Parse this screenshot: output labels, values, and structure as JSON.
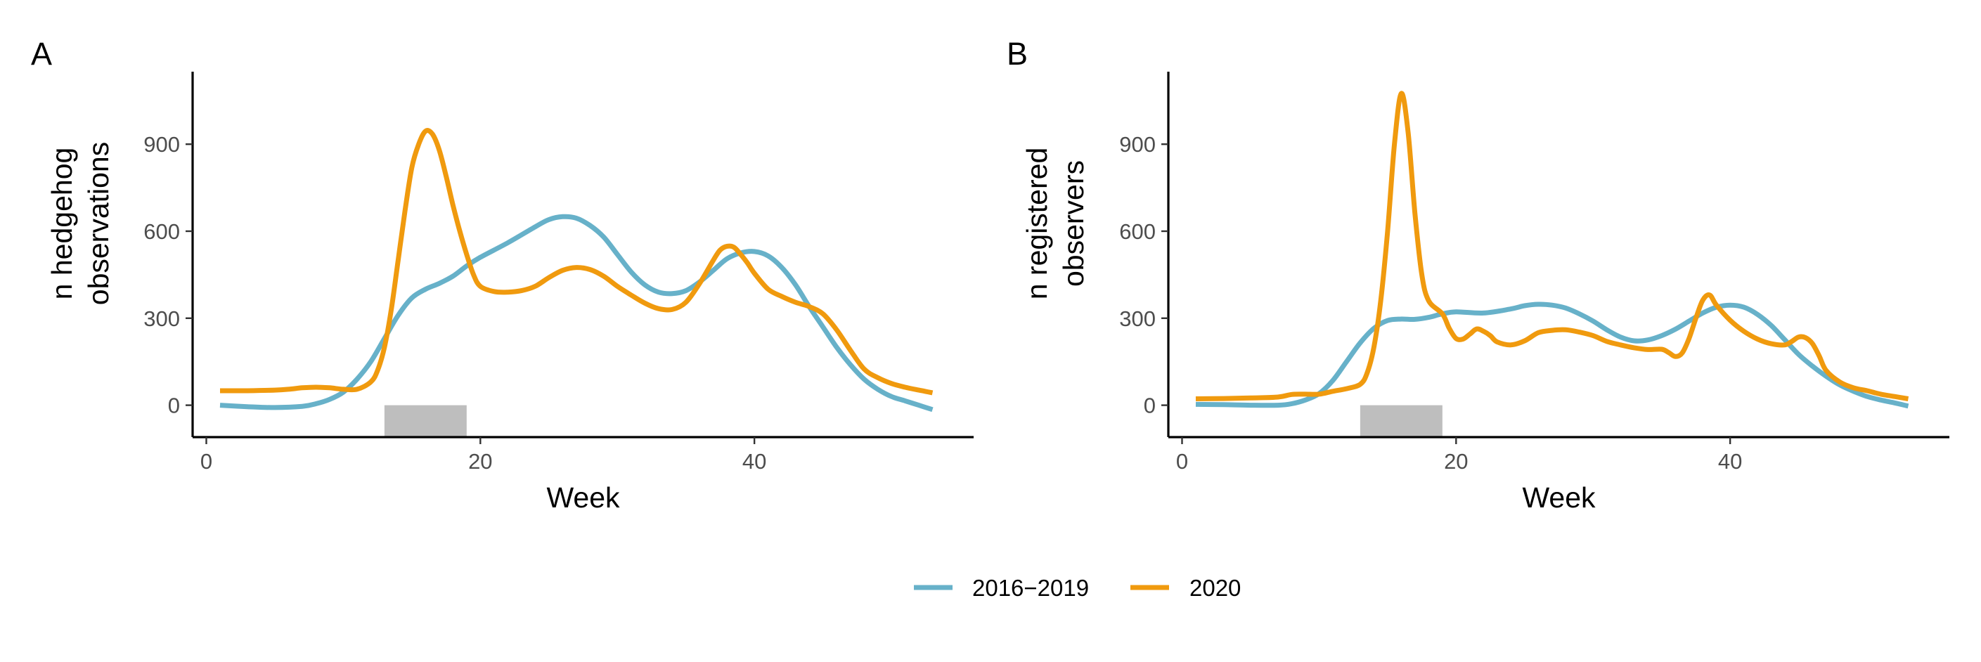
{
  "chart_data": [
    {
      "type": "line",
      "panel_label": "A",
      "xlabel": "Week",
      "ylabel_lines": [
        "n hedgehog",
        "observations"
      ],
      "xlim": [
        -1,
        56
      ],
      "ylim": [
        -110,
        1150
      ],
      "xticks": [
        0,
        20,
        40
      ],
      "yticks": [
        0,
        300,
        600,
        900
      ],
      "grid": false,
      "shaded_period": {
        "x": [
          13,
          19
        ],
        "y": [
          -110,
          0
        ],
        "color": "#bebebe"
      },
      "series": [
        {
          "name": "2016−2019",
          "color": "#67b1c9",
          "points": [
            [
              1,
              0
            ],
            [
              3,
              -5
            ],
            [
              5,
              -8
            ],
            [
              7,
              -4
            ],
            [
              8,
              5
            ],
            [
              9,
              20
            ],
            [
              10,
              45
            ],
            [
              11,
              90
            ],
            [
              12,
              150
            ],
            [
              13,
              230
            ],
            [
              14,
              310
            ],
            [
              15,
              370
            ],
            [
              16,
              400
            ],
            [
              17,
              420
            ],
            [
              18,
              445
            ],
            [
              19,
              480
            ],
            [
              20,
              510
            ],
            [
              22,
              560
            ],
            [
              24,
              615
            ],
            [
              25,
              640
            ],
            [
              26,
              650
            ],
            [
              27,
              645
            ],
            [
              28,
              620
            ],
            [
              29,
              580
            ],
            [
              30,
              520
            ],
            [
              31,
              460
            ],
            [
              32,
              415
            ],
            [
              33,
              390
            ],
            [
              34,
              385
            ],
            [
              35,
              395
            ],
            [
              36,
              425
            ],
            [
              37,
              465
            ],
            [
              38,
              505
            ],
            [
              39,
              525
            ],
            [
              40,
              530
            ],
            [
              41,
              515
            ],
            [
              42,
              475
            ],
            [
              43,
              415
            ],
            [
              44,
              340
            ],
            [
              45,
              270
            ],
            [
              46,
              200
            ],
            [
              47,
              140
            ],
            [
              48,
              90
            ],
            [
              49,
              55
            ],
            [
              50,
              30
            ],
            [
              51,
              15
            ],
            [
              52,
              0
            ],
            [
              53,
              -15
            ]
          ]
        },
        {
          "name": "2020",
          "color": "#f09a0e",
          "points": [
            [
              1,
              50
            ],
            [
              3,
              50
            ],
            [
              5,
              52
            ],
            [
              6,
              55
            ],
            [
              7,
              60
            ],
            [
              8,
              62
            ],
            [
              9,
              60
            ],
            [
              10,
              55
            ],
            [
              11,
              55
            ],
            [
              12,
              80
            ],
            [
              12.5,
              120
            ],
            [
              13,
              200
            ],
            [
              13.5,
              330
            ],
            [
              14,
              500
            ],
            [
              14.5,
              670
            ],
            [
              15,
              820
            ],
            [
              15.5,
              900
            ],
            [
              16,
              945
            ],
            [
              16.5,
              935
            ],
            [
              17,
              880
            ],
            [
              17.5,
              790
            ],
            [
              18,
              690
            ],
            [
              18.5,
              600
            ],
            [
              19,
              520
            ],
            [
              19.5,
              450
            ],
            [
              20,
              410
            ],
            [
              21,
              392
            ],
            [
              22,
              390
            ],
            [
              23,
              395
            ],
            [
              24,
              410
            ],
            [
              25,
              440
            ],
            [
              26,
              465
            ],
            [
              27,
              475
            ],
            [
              28,
              468
            ],
            [
              29,
              445
            ],
            [
              30,
              410
            ],
            [
              31,
              380
            ],
            [
              32,
              352
            ],
            [
              33,
              333
            ],
            [
              34,
              330
            ],
            [
              35,
              355
            ],
            [
              36,
              420
            ],
            [
              37,
              500
            ],
            [
              37.5,
              535
            ],
            [
              38,
              548
            ],
            [
              38.5,
              545
            ],
            [
              39,
              520
            ],
            [
              39.5,
              490
            ],
            [
              40,
              455
            ],
            [
              41,
              400
            ],
            [
              42,
              375
            ],
            [
              43,
              355
            ],
            [
              44,
              340
            ],
            [
              45,
              315
            ],
            [
              46,
              260
            ],
            [
              47,
              190
            ],
            [
              48,
              125
            ],
            [
              49,
              95
            ],
            [
              50,
              75
            ],
            [
              51,
              62
            ],
            [
              52,
              52
            ],
            [
              53,
              43
            ]
          ]
        }
      ]
    },
    {
      "type": "line",
      "panel_label": "B",
      "xlabel": "Week",
      "ylabel_lines": [
        "n registered",
        "observers"
      ],
      "xlim": [
        -1,
        56
      ],
      "ylim": [
        -110,
        1150
      ],
      "xticks": [
        0,
        20,
        40
      ],
      "yticks": [
        0,
        300,
        600,
        900
      ],
      "grid": false,
      "shaded_period": {
        "x": [
          13,
          19
        ],
        "y": [
          -110,
          0
        ],
        "color": "#bebebe"
      },
      "series": [
        {
          "name": "2016−2019",
          "color": "#67b1c9",
          "points": [
            [
              1,
              3
            ],
            [
              3,
              2
            ],
            [
              5,
              0
            ],
            [
              7,
              0
            ],
            [
              8,
              5
            ],
            [
              9,
              18
            ],
            [
              10,
              40
            ],
            [
              11,
              85
            ],
            [
              12,
              150
            ],
            [
              13,
              215
            ],
            [
              14,
              265
            ],
            [
              15,
              292
            ],
            [
              16,
              297
            ],
            [
              17,
              296
            ],
            [
              18,
              303
            ],
            [
              19,
              315
            ],
            [
              20,
              322
            ],
            [
              22,
              318
            ],
            [
              24,
              332
            ],
            [
              25,
              343
            ],
            [
              26,
              348
            ],
            [
              27,
              345
            ],
            [
              28,
              335
            ],
            [
              29,
              315
            ],
            [
              30,
              290
            ],
            [
              31,
              260
            ],
            [
              32,
              235
            ],
            [
              33,
              222
            ],
            [
              34,
              225
            ],
            [
              35,
              240
            ],
            [
              36,
              262
            ],
            [
              37,
              290
            ],
            [
              38,
              318
            ],
            [
              39,
              338
            ],
            [
              40,
              345
            ],
            [
              41,
              338
            ],
            [
              42,
              313
            ],
            [
              43,
              275
            ],
            [
              44,
              225
            ],
            [
              45,
              175
            ],
            [
              46,
              135
            ],
            [
              47,
              100
            ],
            [
              48,
              70
            ],
            [
              49,
              48
            ],
            [
              50,
              30
            ],
            [
              51,
              18
            ],
            [
              52,
              8
            ],
            [
              53,
              -3
            ]
          ]
        },
        {
          "name": "2020",
          "color": "#f09a0e",
          "points": [
            [
              1,
              22
            ],
            [
              3,
              23
            ],
            [
              5,
              25
            ],
            [
              7,
              28
            ],
            [
              8,
              37
            ],
            [
              9,
              38
            ],
            [
              10,
              38
            ],
            [
              11,
              48
            ],
            [
              12,
              57
            ],
            [
              13,
              72
            ],
            [
              13.5,
              110
            ],
            [
              14,
              200
            ],
            [
              14.5,
              360
            ],
            [
              15,
              600
            ],
            [
              15.5,
              900
            ],
            [
              16,
              1075
            ],
            [
              16.5,
              940
            ],
            [
              17,
              660
            ],
            [
              17.5,
              450
            ],
            [
              18,
              360
            ],
            [
              19,
              315
            ],
            [
              19.5,
              265
            ],
            [
              20,
              230
            ],
            [
              20.5,
              228
            ],
            [
              21,
              245
            ],
            [
              21.5,
              263
            ],
            [
              22,
              255
            ],
            [
              22.5,
              240
            ],
            [
              23,
              218
            ],
            [
              24,
              208
            ],
            [
              25,
              222
            ],
            [
              26,
              250
            ],
            [
              27,
              258
            ],
            [
              28,
              260
            ],
            [
              29,
              252
            ],
            [
              30,
              240
            ],
            [
              31,
              220
            ],
            [
              32,
              208
            ],
            [
              33,
              198
            ],
            [
              34,
              192
            ],
            [
              35,
              193
            ],
            [
              35.5,
              182
            ],
            [
              36,
              168
            ],
            [
              36.5,
              180
            ],
            [
              37,
              230
            ],
            [
              37.5,
              300
            ],
            [
              38,
              362
            ],
            [
              38.5,
              380
            ],
            [
              39,
              345
            ],
            [
              40,
              293
            ],
            [
              41,
              255
            ],
            [
              42,
              228
            ],
            [
              43,
              212
            ],
            [
              44,
              208
            ],
            [
              44.5,
              220
            ],
            [
              45,
              235
            ],
            [
              45.5,
              233
            ],
            [
              46,
              213
            ],
            [
              46.5,
              170
            ],
            [
              47,
              120
            ],
            [
              48,
              80
            ],
            [
              49,
              60
            ],
            [
              50,
              50
            ],
            [
              51,
              38
            ],
            [
              52,
              30
            ],
            [
              53,
              22
            ]
          ]
        }
      ]
    }
  ],
  "legend": {
    "position": "bottom",
    "entries": [
      {
        "label": "2016−2019",
        "color": "#67b1c9"
      },
      {
        "label": "2020",
        "color": "#f09a0e"
      }
    ]
  }
}
